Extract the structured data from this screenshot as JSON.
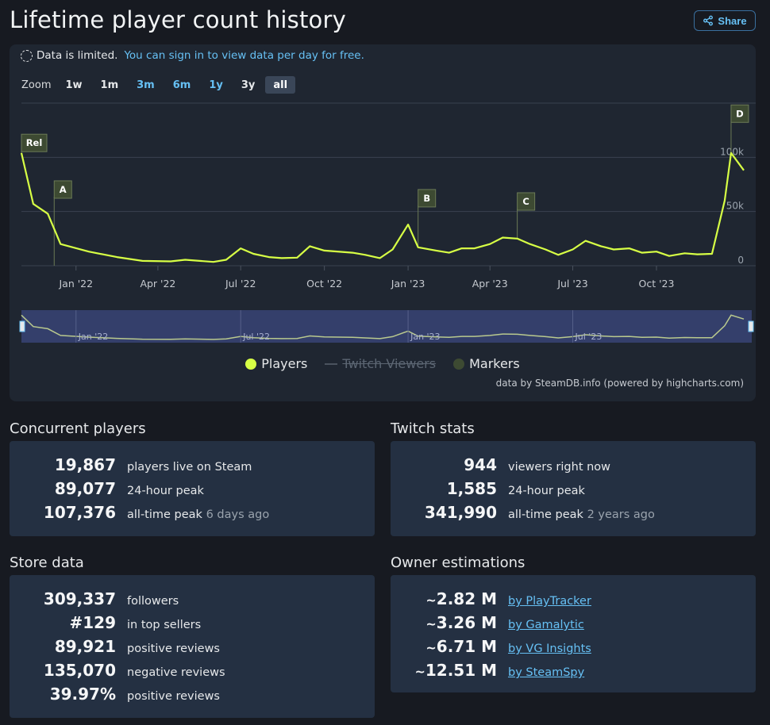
{
  "page": {
    "title": "Lifetime player count history",
    "share_label": "Share"
  },
  "notice": {
    "text": "Data is limited.",
    "link": "You can sign in to view data per day for free."
  },
  "zoom": {
    "label": "Zoom",
    "buttons": [
      {
        "label": "1w",
        "style": "white"
      },
      {
        "label": "1m",
        "style": "white"
      },
      {
        "label": "3m",
        "style": "blue"
      },
      {
        "label": "6m",
        "style": "blue"
      },
      {
        "label": "1y",
        "style": "blue"
      },
      {
        "label": "3y",
        "style": "white"
      },
      {
        "label": "all",
        "style": "active"
      }
    ]
  },
  "chart_data": {
    "type": "line",
    "x_ticks": [
      "Jan '22",
      "Apr '22",
      "Jul '22",
      "Oct '22",
      "Jan '23",
      "Apr '23",
      "Jul '23",
      "Oct '23"
    ],
    "y_ticks": [
      "0",
      "50k",
      "100k"
    ],
    "ylim": [
      0,
      150000
    ],
    "series": [
      {
        "name": "Players",
        "color": "#d7ff45",
        "points": [
          [
            "2021-11-02",
            104000
          ],
          [
            "2021-11-15",
            57000
          ],
          [
            "2021-12-01",
            48000
          ],
          [
            "2021-12-15",
            20000
          ],
          [
            "2022-01-15",
            13000
          ],
          [
            "2022-02-15",
            8000
          ],
          [
            "2022-03-15",
            4500
          ],
          [
            "2022-04-15",
            4000
          ],
          [
            "2022-05-01",
            5500
          ],
          [
            "2022-06-01",
            3500
          ],
          [
            "2022-06-15",
            5500
          ],
          [
            "2022-07-01",
            16000
          ],
          [
            "2022-07-15",
            11000
          ],
          [
            "2022-08-01",
            8000
          ],
          [
            "2022-08-15",
            7000
          ],
          [
            "2022-09-01",
            7500
          ],
          [
            "2022-09-15",
            18000
          ],
          [
            "2022-10-01",
            14000
          ],
          [
            "2022-11-01",
            12000
          ],
          [
            "2022-11-15",
            10000
          ],
          [
            "2022-12-01",
            7000
          ],
          [
            "2022-12-15",
            15000
          ],
          [
            "2023-01-01",
            38000
          ],
          [
            "2023-01-12",
            17000
          ],
          [
            "2023-02-01",
            14000
          ],
          [
            "2023-02-15",
            12000
          ],
          [
            "2023-03-01",
            16000
          ],
          [
            "2023-03-15",
            16000
          ],
          [
            "2023-04-01",
            20000
          ],
          [
            "2023-04-15",
            26000
          ],
          [
            "2023-05-01",
            25000
          ],
          [
            "2023-05-15",
            20000
          ],
          [
            "2023-06-01",
            15000
          ],
          [
            "2023-06-15",
            10000
          ],
          [
            "2023-07-01",
            15000
          ],
          [
            "2023-07-15",
            23000
          ],
          [
            "2023-08-01",
            18000
          ],
          [
            "2023-08-15",
            15000
          ],
          [
            "2023-09-01",
            16000
          ],
          [
            "2023-09-15",
            12000
          ],
          [
            "2023-10-01",
            13000
          ],
          [
            "2023-10-15",
            9000
          ],
          [
            "2023-11-01",
            11500
          ],
          [
            "2023-11-15",
            10500
          ],
          [
            "2023-12-01",
            11000
          ],
          [
            "2023-12-15",
            60000
          ],
          [
            "2023-12-22",
            104000
          ],
          [
            "2024-01-05",
            88000
          ]
        ]
      },
      {
        "name": "Twitch Viewers",
        "hidden": true
      }
    ],
    "markers": [
      {
        "label": "Rel",
        "date": "2021-11-02",
        "box_value": 114000
      },
      {
        "label": "A",
        "date": "2021-12-08",
        "box_value": 71000
      },
      {
        "label": "B",
        "date": "2023-01-12",
        "box_value": 63000
      },
      {
        "label": "C",
        "date": "2023-05-01",
        "box_value": 60000
      },
      {
        "label": "D",
        "date": "2023-12-22",
        "box_value": 141000
      }
    ],
    "markers_legend": "Markers"
  },
  "credits": "data by SteamDB.info (powered by highcharts.com)",
  "concurrent": {
    "title": "Concurrent players",
    "rows": [
      {
        "value": "19,867",
        "label": "players live on Steam"
      },
      {
        "value": "89,077",
        "label": "24-hour peak"
      },
      {
        "value": "107,376",
        "label": "all-time peak",
        "muted": "6 days ago"
      }
    ]
  },
  "twitch": {
    "title": "Twitch stats",
    "rows": [
      {
        "value": "944",
        "label": "viewers right now"
      },
      {
        "value": "1,585",
        "label": "24-hour peak"
      },
      {
        "value": "341,990",
        "label": "all-time peak",
        "muted": "2 years ago"
      }
    ]
  },
  "store": {
    "title": "Store data",
    "rows": [
      {
        "value": "309,337",
        "label": "followers"
      },
      {
        "value": "#129",
        "label": "in top sellers"
      },
      {
        "value": "89,921",
        "label": "positive reviews"
      },
      {
        "value": "135,070",
        "label": "negative reviews"
      },
      {
        "value": "39.97%",
        "label": "positive reviews"
      }
    ]
  },
  "owners": {
    "title": "Owner estimations",
    "rows": [
      {
        "value": "2.82 M",
        "label": "by PlayTracker"
      },
      {
        "value": "3.26 M",
        "label": "by Gamalytic"
      },
      {
        "value": "6.71 M",
        "label": "by VG Insights"
      },
      {
        "value": "12.51 M",
        "label": "by SteamSpy"
      }
    ]
  }
}
